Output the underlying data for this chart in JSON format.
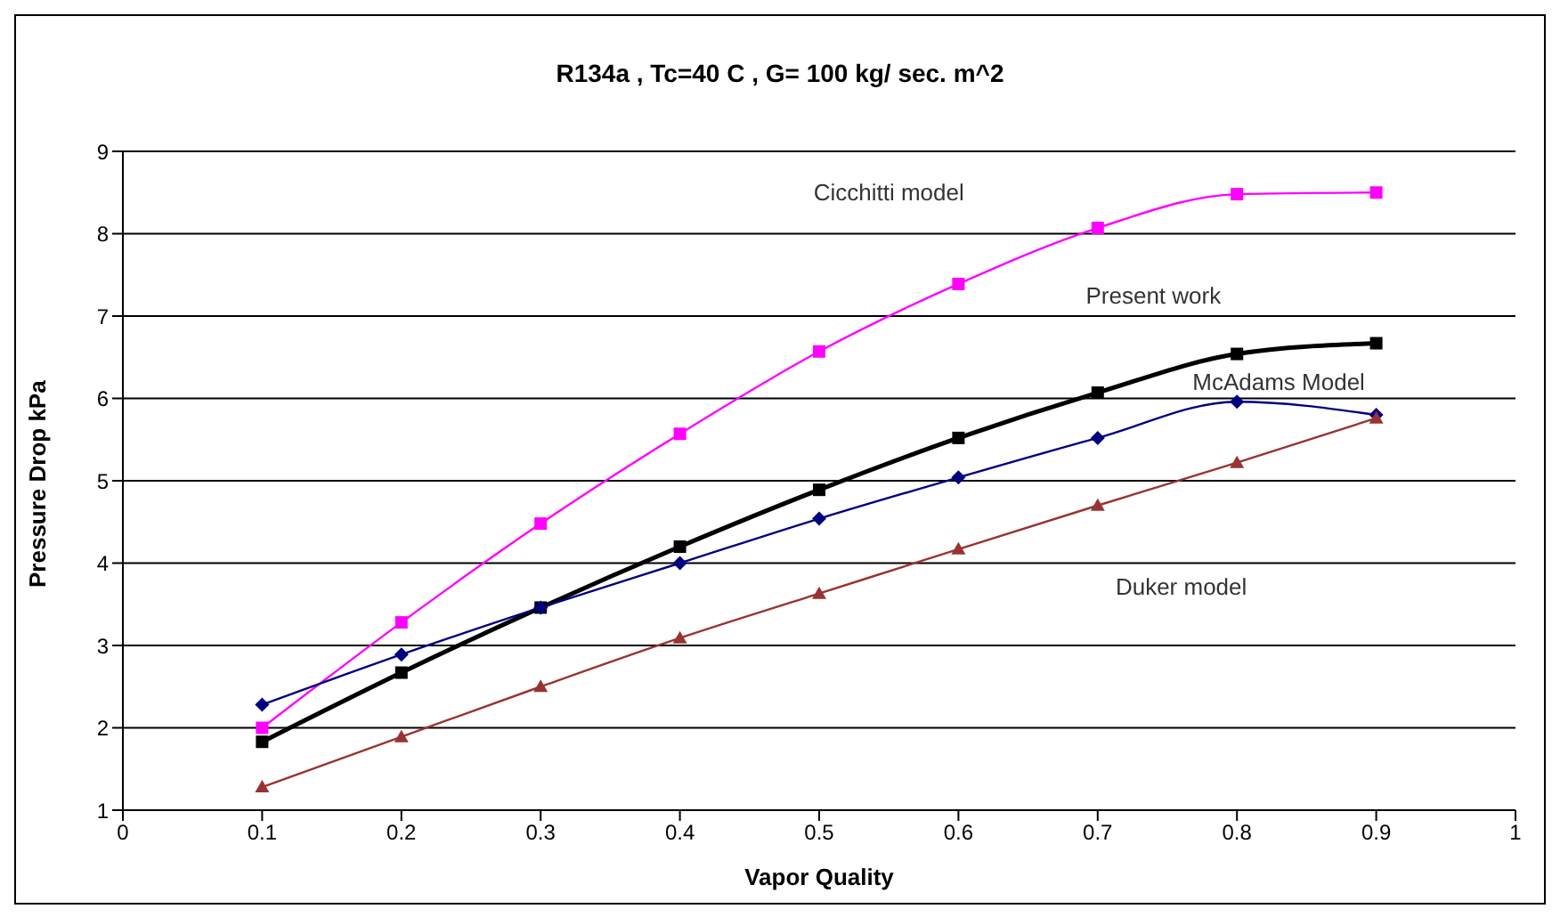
{
  "chart_data": {
    "type": "line",
    "title": "R134a , Tc=40 C , G= 100 kg/ sec. m^2",
    "xlabel": "Vapor Quality",
    "ylabel": "Pressure Drop kPa",
    "x": [
      0.1,
      0.2,
      0.3,
      0.4,
      0.5,
      0.6,
      0.7,
      0.8,
      0.9
    ],
    "series": [
      {
        "name": "Cicchitti model",
        "color": "#ff00ff",
        "marker": "square",
        "values": [
          2.0,
          3.28,
          4.48,
          5.57,
          6.57,
          7.39,
          8.07,
          8.48,
          8.5
        ]
      },
      {
        "name": "Present work",
        "color": "#000000",
        "marker": "square",
        "values": [
          1.83,
          2.67,
          3.46,
          4.2,
          4.89,
          5.52,
          6.07,
          6.54,
          6.67
        ]
      },
      {
        "name": "McAdams Model",
        "color": "#000080",
        "marker": "diamond",
        "values": [
          2.28,
          2.89,
          3.46,
          4.0,
          4.54,
          5.04,
          5.52,
          5.96,
          5.8
        ]
      },
      {
        "name": "Duker model",
        "color": "#993333",
        "marker": "triangle",
        "values": [
          1.28,
          1.89,
          2.5,
          3.09,
          3.63,
          4.17,
          4.7,
          5.22,
          5.76
        ]
      }
    ],
    "xlim": [
      0,
      1
    ],
    "xticks": [
      0,
      0.1,
      0.2,
      0.3,
      0.4,
      0.5,
      0.6,
      0.7,
      0.8,
      0.9,
      1
    ],
    "ylim": [
      1,
      9
    ],
    "yticks": [
      1,
      2,
      3,
      4,
      5,
      6,
      7,
      8,
      9
    ],
    "grid": "y",
    "line_style": "solid"
  }
}
